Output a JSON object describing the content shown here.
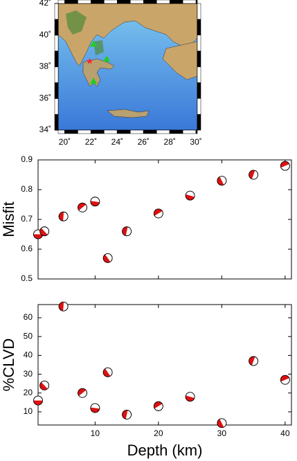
{
  "chart_data": [
    {
      "type": "map",
      "xlim": [
        19.5,
        30.1
      ],
      "ylim": [
        34,
        42
      ],
      "xticks": [
        {
          "value": 20,
          "label": "20˚"
        },
        {
          "value": 22,
          "label": "22˚"
        },
        {
          "value": 24,
          "label": "24˚"
        },
        {
          "value": 26,
          "label": "26˚"
        },
        {
          "value": 28,
          "label": "28˚"
        },
        {
          "value": 30,
          "label": "30˚"
        }
      ],
      "yticks": [
        {
          "value": 34,
          "label": "34˚"
        },
        {
          "value": 36,
          "label": "36˚"
        },
        {
          "value": 38,
          "label": "38˚"
        },
        {
          "value": 40,
          "label": "40˚"
        },
        {
          "value": 42,
          "label": "42˚"
        }
      ],
      "stations": {
        "lon": [
          22.2,
          23.2,
          22.2
        ],
        "lat": [
          39.45,
          38.5,
          37.1
        ],
        "color": "#22cc22"
      },
      "event": {
        "lon": 21.9,
        "lat": 38.35,
        "color": "#ff2222"
      }
    },
    {
      "type": "beachball",
      "ylabel": "Misfit",
      "x": [
        1,
        2,
        5,
        8,
        10,
        12,
        15,
        20,
        25,
        30,
        35,
        40
      ],
      "values": [
        0.65,
        0.66,
        0.71,
        0.74,
        0.76,
        0.57,
        0.66,
        0.72,
        0.78,
        0.83,
        0.85,
        0.88
      ],
      "color": "#dd1111",
      "xlim": [
        1,
        41
      ],
      "ylim": [
        0.5,
        0.9
      ],
      "xticks": [
        10,
        20,
        30,
        40
      ],
      "xtick_labels": false,
      "yticks": [
        0.5,
        0.6,
        0.7,
        0.8,
        0.9
      ]
    },
    {
      "type": "beachball",
      "ylabel": "%CLVD",
      "xlabel": "Depth (km)",
      "x": [
        1,
        2,
        5,
        8,
        10,
        12,
        15,
        20,
        25,
        30,
        35,
        40
      ],
      "values": [
        16,
        24,
        66,
        20,
        12,
        31,
        8.5,
        13,
        18,
        4,
        37,
        27
      ],
      "color": "#dd1111",
      "xlim": [
        1,
        41
      ],
      "ylim": [
        3,
        67
      ],
      "xticks": [
        10,
        20,
        30,
        40
      ],
      "xtick_labels": true,
      "yticks": [
        10,
        20,
        30,
        40,
        50,
        60
      ]
    }
  ]
}
